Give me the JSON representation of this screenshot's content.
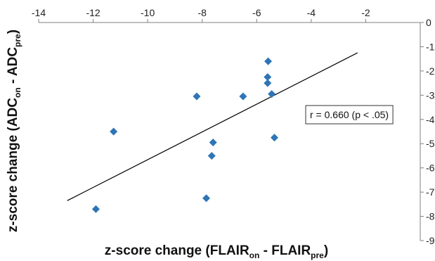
{
  "chart_data": {
    "type": "scatter",
    "title": "",
    "xlabel": {
      "prefix": "z-score change (FLAIR",
      "sub1": "on",
      "middle": " - FLAIR",
      "sub2": "pre",
      "suffix": ")"
    },
    "ylabel": {
      "prefix": "z-score change (ADC",
      "sub1": "on",
      "middle": " - ADC",
      "sub2": "pre",
      "suffix": ")"
    },
    "xlim": [
      -14,
      0
    ],
    "ylim": [
      -9,
      0
    ],
    "x_ticks": [
      -14,
      -12,
      -10,
      -8,
      -6,
      -4,
      -2
    ],
    "y_ticks": [
      0,
      -1,
      -2,
      -3,
      -4,
      -5,
      -6,
      -7,
      -8,
      -9
    ],
    "x_tick_labels": [
      "-14",
      "-12",
      "-10",
      "-8",
      "-6",
      "-4",
      "-2"
    ],
    "y_tick_labels": [
      "0",
      "-1",
      "-2",
      "-3",
      "-4",
      "-5",
      "-6",
      "-7",
      "-8",
      "-9"
    ],
    "x_axis_position": "top",
    "y_axis_position": "right",
    "grid": false,
    "legend": "none",
    "marker": "diamond",
    "marker_color": "#2E75B6",
    "points": [
      {
        "x": -11.9,
        "y": -7.7
      },
      {
        "x": -11.25,
        "y": -4.5
      },
      {
        "x": -8.2,
        "y": -3.05
      },
      {
        "x": -7.85,
        "y": -7.25
      },
      {
        "x": -7.65,
        "y": -5.5
      },
      {
        "x": -7.6,
        "y": -4.95
      },
      {
        "x": -6.5,
        "y": -3.05
      },
      {
        "x": -5.58,
        "y": -1.6
      },
      {
        "x": -5.6,
        "y": -2.25
      },
      {
        "x": -5.6,
        "y": -2.5
      },
      {
        "x": -5.45,
        "y": -2.95
      },
      {
        "x": -5.35,
        "y": -4.75
      }
    ],
    "trendline": {
      "color": "#000000",
      "x": [
        -12.95,
        -2.3
      ],
      "y": [
        -7.35,
        -1.25
      ]
    },
    "annotation": {
      "text": "r = 0.660 (p < .05)"
    }
  }
}
